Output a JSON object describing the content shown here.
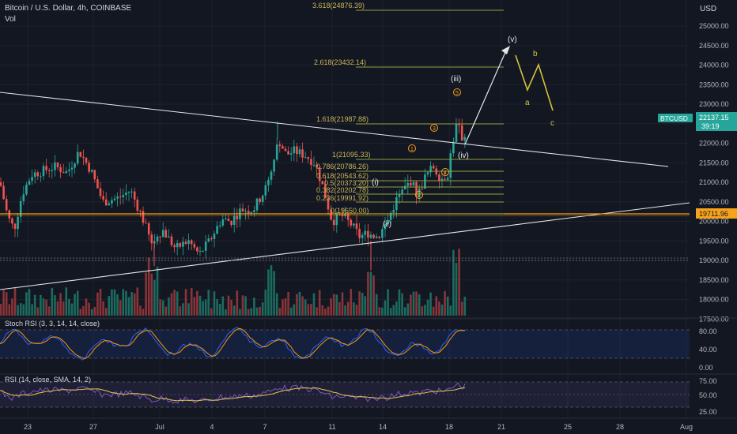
{
  "header": {
    "title": "Bitcoin / U.S. Dollar, 4h, COINBASE",
    "vol_label": "Vol"
  },
  "axis": {
    "currency": "USD",
    "price_ticks": [
      "25000.00",
      "24500.00",
      "24000.00",
      "23500.00",
      "23000.00",
      "22500.00",
      "22000.00",
      "21500.00",
      "21000.00",
      "20500.00",
      "20000.00",
      "19500.00",
      "19000.00",
      "18500.00",
      "18000.00",
      "17500.00"
    ],
    "date_ticks": [
      "23",
      "27",
      "Jul",
      "4",
      "7",
      "11",
      "14",
      "18",
      "21",
      "25",
      "28",
      "Aug"
    ]
  },
  "badges": {
    "symbol": "BTCUSD",
    "price": "22137.15",
    "countdown": "39:19",
    "level": "19711.96",
    "colors": {
      "symbol": "#26a69a",
      "level": "#f7a21b"
    }
  },
  "fib": [
    {
      "label": "3.618(24876.39)"
    },
    {
      "label": "2.618(23432.14)"
    },
    {
      "label": "1.618(21987.88)"
    },
    {
      "label": "1(21095.33)"
    },
    {
      "label": "0.786(20786.26)"
    },
    {
      "label": "0.618(20543.62)"
    },
    {
      "label": "0.5(20373.20)"
    },
    {
      "label": "0.382(20202.78)"
    },
    {
      "label": "0.236(19991.92)"
    },
    {
      "label": "0(19650.00)"
    }
  ],
  "waves": {
    "i": "(i)",
    "ii": "(ii)",
    "iii": "(iii)",
    "iv": "(iv)",
    "v": "(v)",
    "a": "a",
    "b": "b",
    "c": "c",
    "n1": "1",
    "n2": "2",
    "n3": "3",
    "n4": "4",
    "n5": "5"
  },
  "indicators": {
    "stoch_label": "Stoch RSI (3, 3, 14, 14, close)",
    "stoch_ticks": [
      "80.00",
      "40.00",
      "0.00"
    ],
    "rsi_label": "RSI (14, close, SMA, 14, 2)",
    "rsi_ticks": [
      "75.00",
      "50.00",
      "25.00"
    ]
  },
  "chart_data": {
    "type": "candlestick",
    "symbol": "BTCUSD",
    "timeframe": "4h",
    "last_price": 22137.15,
    "horizontal_level": 19711.96,
    "y_range": [
      17200,
      25250
    ],
    "key_prices": {
      "high_jul8": 22500,
      "low_jul13": 18900,
      "peak_jul18": 22800,
      "target_v": 23850
    },
    "projection": {
      "v_target": 23850,
      "a": 22900,
      "b": 23500,
      "c": 22400
    }
  }
}
